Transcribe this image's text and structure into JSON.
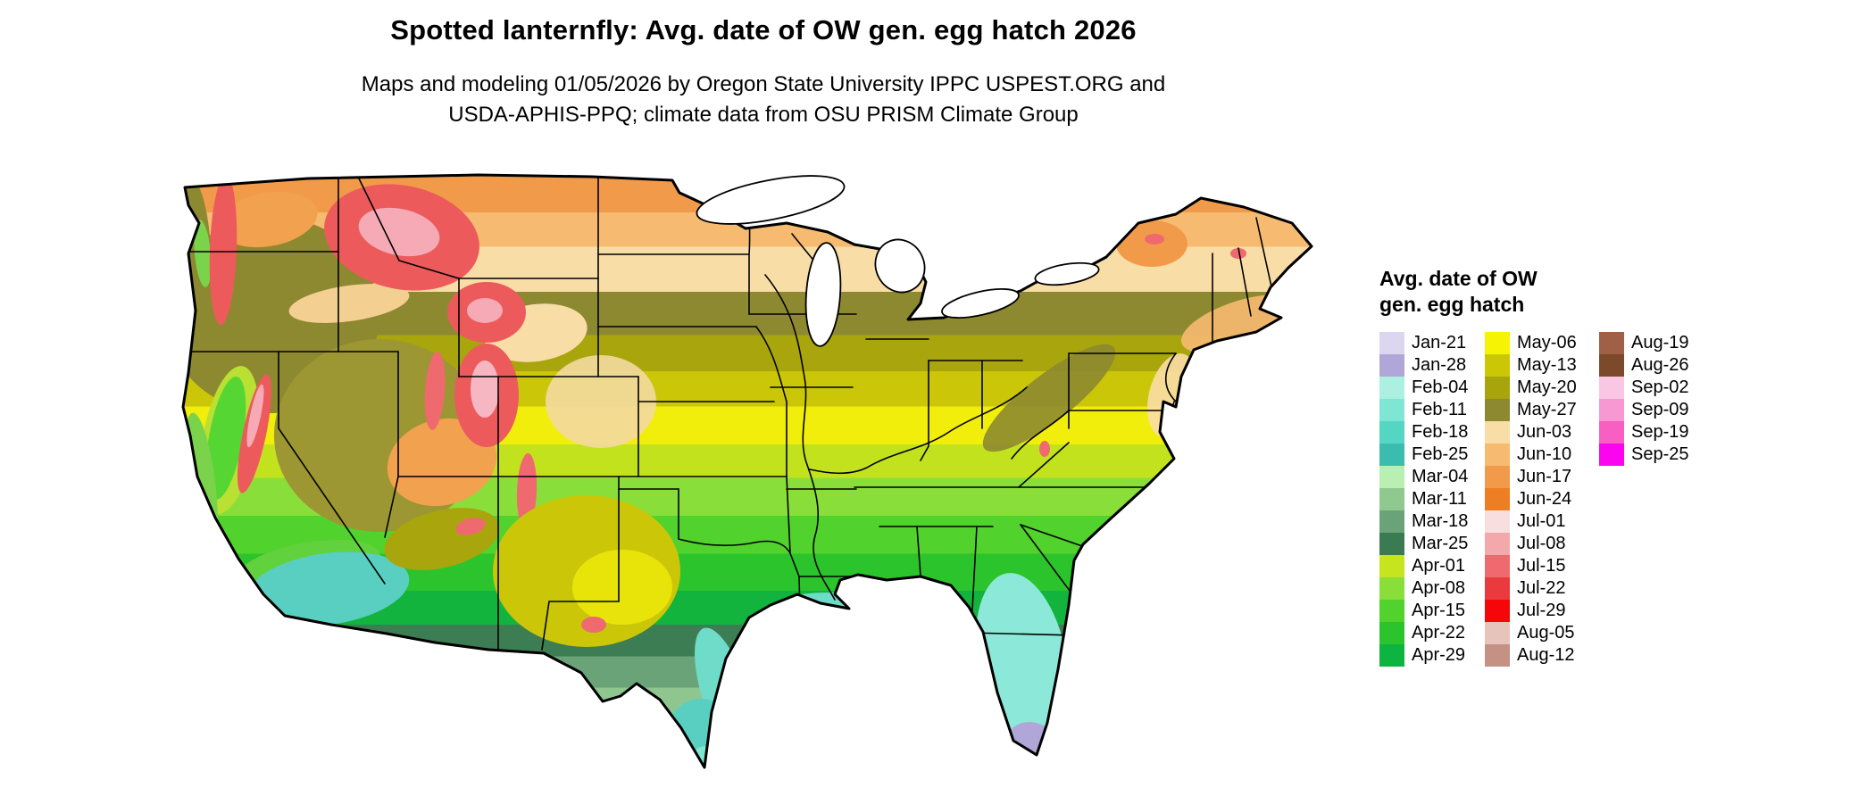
{
  "title": "Spotted lanternfly: Avg. date of OW gen. egg hatch 2026",
  "subtitle": {
    "line1": "Maps and modeling 01/05/2026 by Oregon State University IPPC USPEST.ORG and",
    "line2": "USDA-APHIS-PPQ; climate data from OSU PRISM Climate Group"
  },
  "legend": {
    "title_line1": "Avg. date of OW",
    "title_line2": "gen. egg hatch",
    "columns": [
      [
        {
          "label": "Jan-21",
          "color": "#dcd7ef"
        },
        {
          "label": "Jan-28",
          "color": "#b1a6d8"
        },
        {
          "label": "Feb-04",
          "color": "#abf0e0"
        },
        {
          "label": "Feb-11",
          "color": "#7fe6d4"
        },
        {
          "label": "Feb-18",
          "color": "#55d5c4"
        },
        {
          "label": "Feb-25",
          "color": "#3cbcae"
        },
        {
          "label": "Mar-04",
          "color": "#b9efb0"
        },
        {
          "label": "Mar-11",
          "color": "#8fc98f"
        },
        {
          "label": "Mar-18",
          "color": "#69a377"
        },
        {
          "label": "Mar-25",
          "color": "#3b7b52"
        },
        {
          "label": "Apr-01",
          "color": "#c6e51f"
        },
        {
          "label": "Apr-08",
          "color": "#8ade3a"
        },
        {
          "label": "Apr-15",
          "color": "#52d22c"
        },
        {
          "label": "Apr-22",
          "color": "#2cc42c"
        },
        {
          "label": "Apr-29",
          "color": "#0eb440"
        }
      ],
      [
        {
          "label": "May-06",
          "color": "#f6f404"
        },
        {
          "label": "May-13",
          "color": "#cbc707"
        },
        {
          "label": "May-20",
          "color": "#a8a40c"
        },
        {
          "label": "May-27",
          "color": "#8d8930"
        },
        {
          "label": "Jun-03",
          "color": "#f9dda6"
        },
        {
          "label": "Jun-10",
          "color": "#f6ba70"
        },
        {
          "label": "Jun-17",
          "color": "#f19b4a"
        },
        {
          "label": "Jun-24",
          "color": "#ee7e23"
        },
        {
          "label": "Jul-01",
          "color": "#f8dede"
        },
        {
          "label": "Jul-08",
          "color": "#f3a8ac"
        },
        {
          "label": "Jul-15",
          "color": "#ee6a6e"
        },
        {
          "label": "Jul-22",
          "color": "#ea3a3e"
        },
        {
          "label": "Jul-29",
          "color": "#f60608"
        },
        {
          "label": "Aug-05",
          "color": "#e7c4bb"
        },
        {
          "label": "Aug-12",
          "color": "#c59185"
        }
      ],
      [
        {
          "label": "Aug-19",
          "color": "#a06048"
        },
        {
          "label": "Aug-26",
          "color": "#7c4a2a"
        },
        {
          "label": "Sep-02",
          "color": "#f9c7e4"
        },
        {
          "label": "Sep-09",
          "color": "#f898d2"
        },
        {
          "label": "Sep-19",
          "color": "#f75fc3"
        },
        {
          "label": "Sep-25",
          "color": "#fb04f0"
        }
      ]
    ]
  },
  "map": {
    "description": "Continental US choropleth of average overwintering-generation egg hatch date; dates get earlier from north (late June, orange) to the Gulf Coast (February, teal) and south Florida (late January, lavender); high western mountains show July dates (red/pink).",
    "bands": [
      {
        "date": "Jun-17",
        "color": "#f19b4a",
        "from": 0,
        "to": 0.072
      },
      {
        "date": "Jun-10",
        "color": "#f6ba70",
        "from": 0.072,
        "to": 0.127
      },
      {
        "date": "Jun-03",
        "color": "#f9dda6",
        "from": 0.127,
        "to": 0.2
      },
      {
        "date": "May-27",
        "color": "#8d8930",
        "from": 0.2,
        "to": 0.27
      },
      {
        "date": "May-20",
        "color": "#a9a50d",
        "from": 0.27,
        "to": 0.328
      },
      {
        "date": "May-13",
        "color": "#cbc708",
        "from": 0.328,
        "to": 0.385
      },
      {
        "date": "May-06",
        "color": "#f2ee0b",
        "from": 0.385,
        "to": 0.446
      },
      {
        "date": "Apr-01",
        "color": "#c3e21e",
        "from": 0.446,
        "to": 0.5
      },
      {
        "date": "Apr-08",
        "color": "#8ade3a",
        "from": 0.5,
        "to": 0.561
      },
      {
        "date": "Apr-15",
        "color": "#52d22c",
        "from": 0.561,
        "to": 0.622
      },
      {
        "date": "Apr-22",
        "color": "#2cc42c",
        "from": 0.622,
        "to": 0.682
      },
      {
        "date": "Apr-29",
        "color": "#12b43e",
        "from": 0.682,
        "to": 0.737
      },
      {
        "date": "Mar-25",
        "color": "#3d7d53",
        "from": 0.737,
        "to": 0.788
      },
      {
        "date": "Mar-18",
        "color": "#69a377",
        "from": 0.788,
        "to": 0.838
      },
      {
        "date": "Mar-11",
        "color": "#8fc68f",
        "from": 0.838,
        "to": 0.886
      },
      {
        "date": "Feb-25",
        "color": "#44c0b0",
        "from": 0.886,
        "to": 0.932
      },
      {
        "date": "Feb-11",
        "color": "#7fe5d6",
        "from": 0.932,
        "to": 1
      }
    ]
  }
}
